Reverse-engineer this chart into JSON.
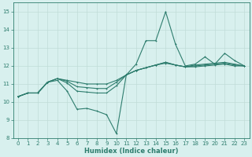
{
  "x": [
    0,
    1,
    2,
    3,
    4,
    5,
    6,
    7,
    8,
    9,
    10,
    11,
    12,
    13,
    14,
    15,
    16,
    17,
    18,
    19,
    20,
    21,
    22,
    23
  ],
  "line1": [
    10.3,
    10.5,
    10.5,
    11.1,
    11.2,
    10.6,
    9.6,
    9.65,
    9.5,
    9.3,
    8.25,
    11.5,
    12.1,
    13.4,
    13.4,
    15.0,
    13.2,
    12.0,
    12.1,
    12.5,
    12.1,
    12.7,
    12.3,
    12.0
  ],
  "line2": [
    10.3,
    10.5,
    10.5,
    11.1,
    11.3,
    11.05,
    10.6,
    10.55,
    10.5,
    10.5,
    10.9,
    11.5,
    11.75,
    11.9,
    12.05,
    12.2,
    12.05,
    11.95,
    12.05,
    12.1,
    12.15,
    12.2,
    12.1,
    12.0
  ],
  "line3": [
    10.3,
    10.5,
    10.5,
    11.1,
    11.3,
    11.15,
    10.85,
    10.8,
    10.75,
    10.75,
    11.1,
    11.5,
    11.75,
    11.9,
    12.05,
    12.2,
    12.05,
    11.95,
    12.0,
    12.05,
    12.1,
    12.15,
    12.05,
    12.0
  ],
  "line4": [
    10.3,
    10.5,
    10.5,
    11.1,
    11.3,
    11.2,
    11.1,
    11.0,
    11.0,
    11.0,
    11.2,
    11.5,
    11.75,
    11.9,
    12.05,
    12.15,
    12.05,
    11.95,
    11.95,
    12.0,
    12.05,
    12.1,
    12.0,
    12.0
  ],
  "line_color": "#2e7d6e",
  "bg_color": "#d8f0ee",
  "grid_color": "#c0dcd8",
  "xlabel": "Humidex (Indice chaleur)",
  "ylim": [
    8,
    15.5
  ],
  "xlim": [
    -0.5,
    23.5
  ],
  "yticks": [
    8,
    9,
    10,
    11,
    12,
    13,
    14,
    15
  ],
  "xticks": [
    0,
    1,
    2,
    3,
    4,
    5,
    6,
    7,
    8,
    9,
    10,
    11,
    12,
    13,
    14,
    15,
    16,
    17,
    18,
    19,
    20,
    21,
    22,
    23
  ],
  "tick_fontsize": 5.0,
  "xlabel_fontsize": 6.0,
  "marker_size": 2.0,
  "line_width": 0.8
}
